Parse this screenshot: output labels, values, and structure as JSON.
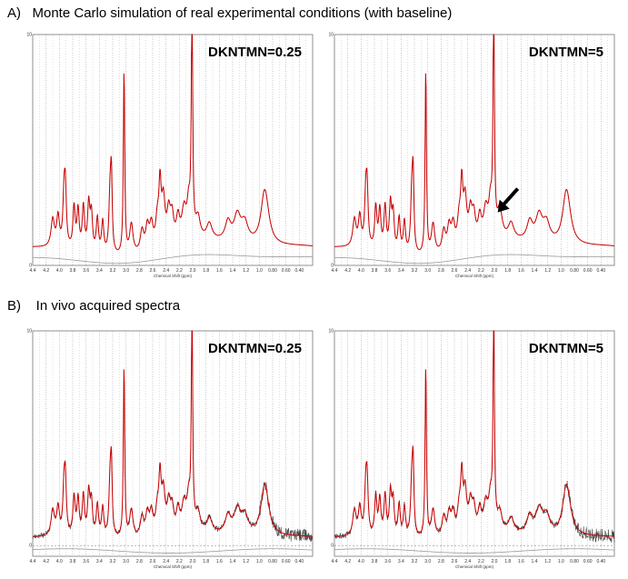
{
  "section_a_title": "A)   Monte Carlo simulation of real experimental conditions (with baseline)",
  "section_b_title": "B)    In vivo acquired spectra",
  "chart_data": [
    {
      "type": "line",
      "label": "DKNTMN=0.25",
      "section": "A",
      "xlabel": "Chemical Shift (ppm)",
      "ylabel": "",
      "xlim": [
        4.4,
        0.2
      ],
      "ylim": [
        0,
        10
      ],
      "x_ticks": [
        "4.4",
        "4.2",
        "4.0",
        "3.8",
        "3.6",
        "3.4",
        "3.2",
        "3.0",
        "2.8",
        "2.6",
        "2.4",
        "2.2",
        "2.0",
        "1.8",
        "1.6",
        "1.4",
        "1.2",
        "1.0",
        "0.80",
        "0.60",
        "0.40"
      ],
      "y_ticks": [
        "0",
        "10"
      ],
      "series": [
        {
          "name": "data",
          "color": "#555555",
          "noise": 0.0
        },
        {
          "name": "fit",
          "color": "#cc0000"
        },
        {
          "name": "baseline",
          "color": "#999999"
        }
      ],
      "has_arrow": false
    },
    {
      "type": "line",
      "label": "DKNTMN=5",
      "section": "A",
      "xlabel": "Chemical Shift (ppm)",
      "ylabel": "",
      "xlim": [
        4.4,
        0.2
      ],
      "ylim": [
        0,
        10
      ],
      "x_ticks": [
        "4.4",
        "4.2",
        "4.0",
        "3.8",
        "3.6",
        "3.4",
        "3.2",
        "3.0",
        "2.8",
        "2.6",
        "2.4",
        "2.2",
        "2.0",
        "1.8",
        "1.6",
        "1.4",
        "1.2",
        "1.0",
        "0.80",
        "0.60",
        "0.40"
      ],
      "y_ticks": [
        "0",
        "10"
      ],
      "series": [
        {
          "name": "data",
          "color": "#555555",
          "noise": 0.0
        },
        {
          "name": "fit",
          "color": "#cc0000"
        },
        {
          "name": "baseline",
          "color": "#999999"
        }
      ],
      "has_arrow": true
    },
    {
      "type": "line",
      "label": "DKNTMN=0.25",
      "section": "B",
      "xlabel": "Chemical Shift (ppm)",
      "ylabel": "",
      "xlim": [
        4.4,
        0.2
      ],
      "ylim": [
        0,
        10
      ],
      "x_ticks": [
        "4.4",
        "4.2",
        "4.0",
        "3.8",
        "3.6",
        "3.4",
        "3.2",
        "3.0",
        "2.8",
        "2.6",
        "2.4",
        "2.2",
        "2.0",
        "1.8",
        "1.6",
        "1.4",
        "1.2",
        "1.0",
        "0.80",
        "0.60",
        "0.40"
      ],
      "y_ticks": [
        "0",
        "10"
      ],
      "series": [
        {
          "name": "data",
          "color": "#444444",
          "noise": 0.25
        },
        {
          "name": "fit",
          "color": "#cc0000"
        },
        {
          "name": "baseline",
          "color": "#999999"
        }
      ],
      "has_arrow": false
    },
    {
      "type": "line",
      "label": "DKNTMN=5",
      "section": "B",
      "xlabel": "Chemical Shift (ppm)",
      "ylabel": "",
      "xlim": [
        4.4,
        0.2
      ],
      "ylim": [
        0,
        10
      ],
      "x_ticks": [
        "4.4",
        "4.2",
        "4.0",
        "3.8",
        "3.6",
        "3.4",
        "3.2",
        "3.0",
        "2.8",
        "2.6",
        "2.4",
        "2.2",
        "2.0",
        "1.8",
        "1.6",
        "1.4",
        "1.2",
        "1.0",
        "0.80",
        "0.60",
        "0.40"
      ],
      "y_ticks": [
        "0",
        "10"
      ],
      "series": [
        {
          "name": "data",
          "color": "#444444",
          "noise": 0.25
        },
        {
          "name": "fit",
          "color": "#cc0000"
        },
        {
          "name": "baseline",
          "color": "#999999"
        }
      ],
      "has_arrow": false
    }
  ]
}
